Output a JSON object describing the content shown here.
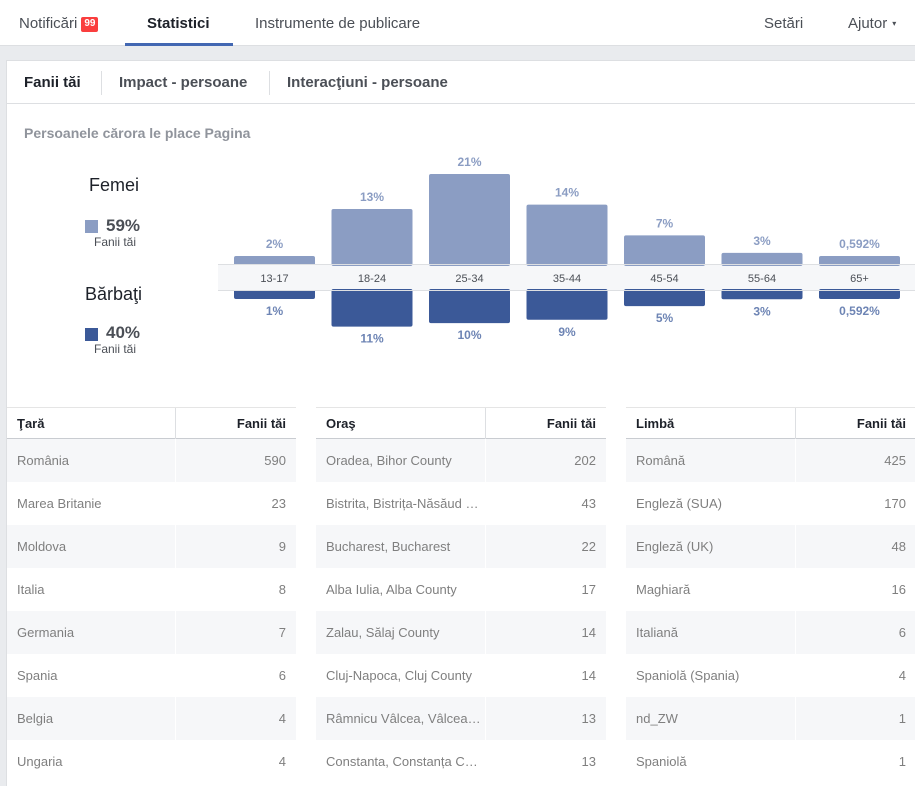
{
  "colors": {
    "female": "#8b9dc3",
    "male": "#3b5998",
    "accent": "#4267b2",
    "badge": "#fa3e3e"
  },
  "nav": {
    "notifications": "Notificări",
    "notifications_badge": "99",
    "insights": "Statistici",
    "publishing_tools": "Instrumente de publicare",
    "settings": "Setări",
    "help": "Ajutor",
    "help_caret": "▾"
  },
  "subtabs": {
    "fans": "Fanii tăi",
    "impact": "Impact - persoane",
    "interactions": "Interacţiuni - persoane"
  },
  "section_title": "Persoanele cărora le place Pagina",
  "gender": {
    "female": {
      "title": "Femei",
      "pct": "59%",
      "sub": "Fanii tăi"
    },
    "male": {
      "title": "Bărbaţi",
      "pct": "40%",
      "sub": "Fanii tăi"
    }
  },
  "chart_data": {
    "type": "bar",
    "title": "",
    "categories": [
      "13-17",
      "18-24",
      "25-34",
      "35-44",
      "45-54",
      "55-64",
      "65+"
    ],
    "series": [
      {
        "name": "Femei",
        "values": [
          2,
          13,
          21,
          14,
          7,
          3,
          0.592
        ],
        "labels": [
          "2%",
          "13%",
          "21%",
          "14%",
          "7%",
          "3%",
          "0,592%"
        ]
      },
      {
        "name": "Bărbaţi",
        "values": [
          1,
          11,
          10,
          9,
          5,
          3,
          0.592
        ],
        "labels": [
          "1%",
          "11%",
          "10%",
          "9%",
          "5%",
          "3%",
          "0,592%"
        ]
      }
    ],
    "ylim": [
      0,
      21
    ]
  },
  "tables": [
    {
      "name_header": "Ţară",
      "value_header": "Fanii tăi",
      "rows": [
        {
          "name": "România",
          "value": "590"
        },
        {
          "name": "Marea Britanie",
          "value": "23"
        },
        {
          "name": "Moldova",
          "value": "9"
        },
        {
          "name": "Italia",
          "value": "8"
        },
        {
          "name": "Germania",
          "value": "7"
        },
        {
          "name": "Spania",
          "value": "6"
        },
        {
          "name": "Belgia",
          "value": "4"
        },
        {
          "name": "Ungaria",
          "value": "4"
        }
      ]
    },
    {
      "name_header": "Oraş",
      "value_header": "Fanii tăi",
      "rows": [
        {
          "name": "Oradea, Bihor County",
          "value": "202"
        },
        {
          "name": "Bistrita, Bistrița-Năsăud County",
          "value": "43"
        },
        {
          "name": "Bucharest, Bucharest",
          "value": "22"
        },
        {
          "name": "Alba Iulia, Alba County",
          "value": "17"
        },
        {
          "name": "Zalau, Sălaj County",
          "value": "14"
        },
        {
          "name": "Cluj-Napoca, Cluj County",
          "value": "14"
        },
        {
          "name": "Râmnicu Vâlcea, Vâlcea County",
          "value": "13"
        },
        {
          "name": "Constanta, Constanța County",
          "value": "13"
        }
      ]
    },
    {
      "name_header": "Limbă",
      "value_header": "Fanii tăi",
      "rows": [
        {
          "name": "Română",
          "value": "425"
        },
        {
          "name": "Engleză (SUA)",
          "value": "170"
        },
        {
          "name": "Engleză (UK)",
          "value": "48"
        },
        {
          "name": "Maghiară",
          "value": "16"
        },
        {
          "name": "Italiană",
          "value": "6"
        },
        {
          "name": "Spaniolă (Spania)",
          "value": "4"
        },
        {
          "name": "nd_ZW",
          "value": "1"
        },
        {
          "name": "Spaniolă",
          "value": "1"
        }
      ]
    }
  ]
}
